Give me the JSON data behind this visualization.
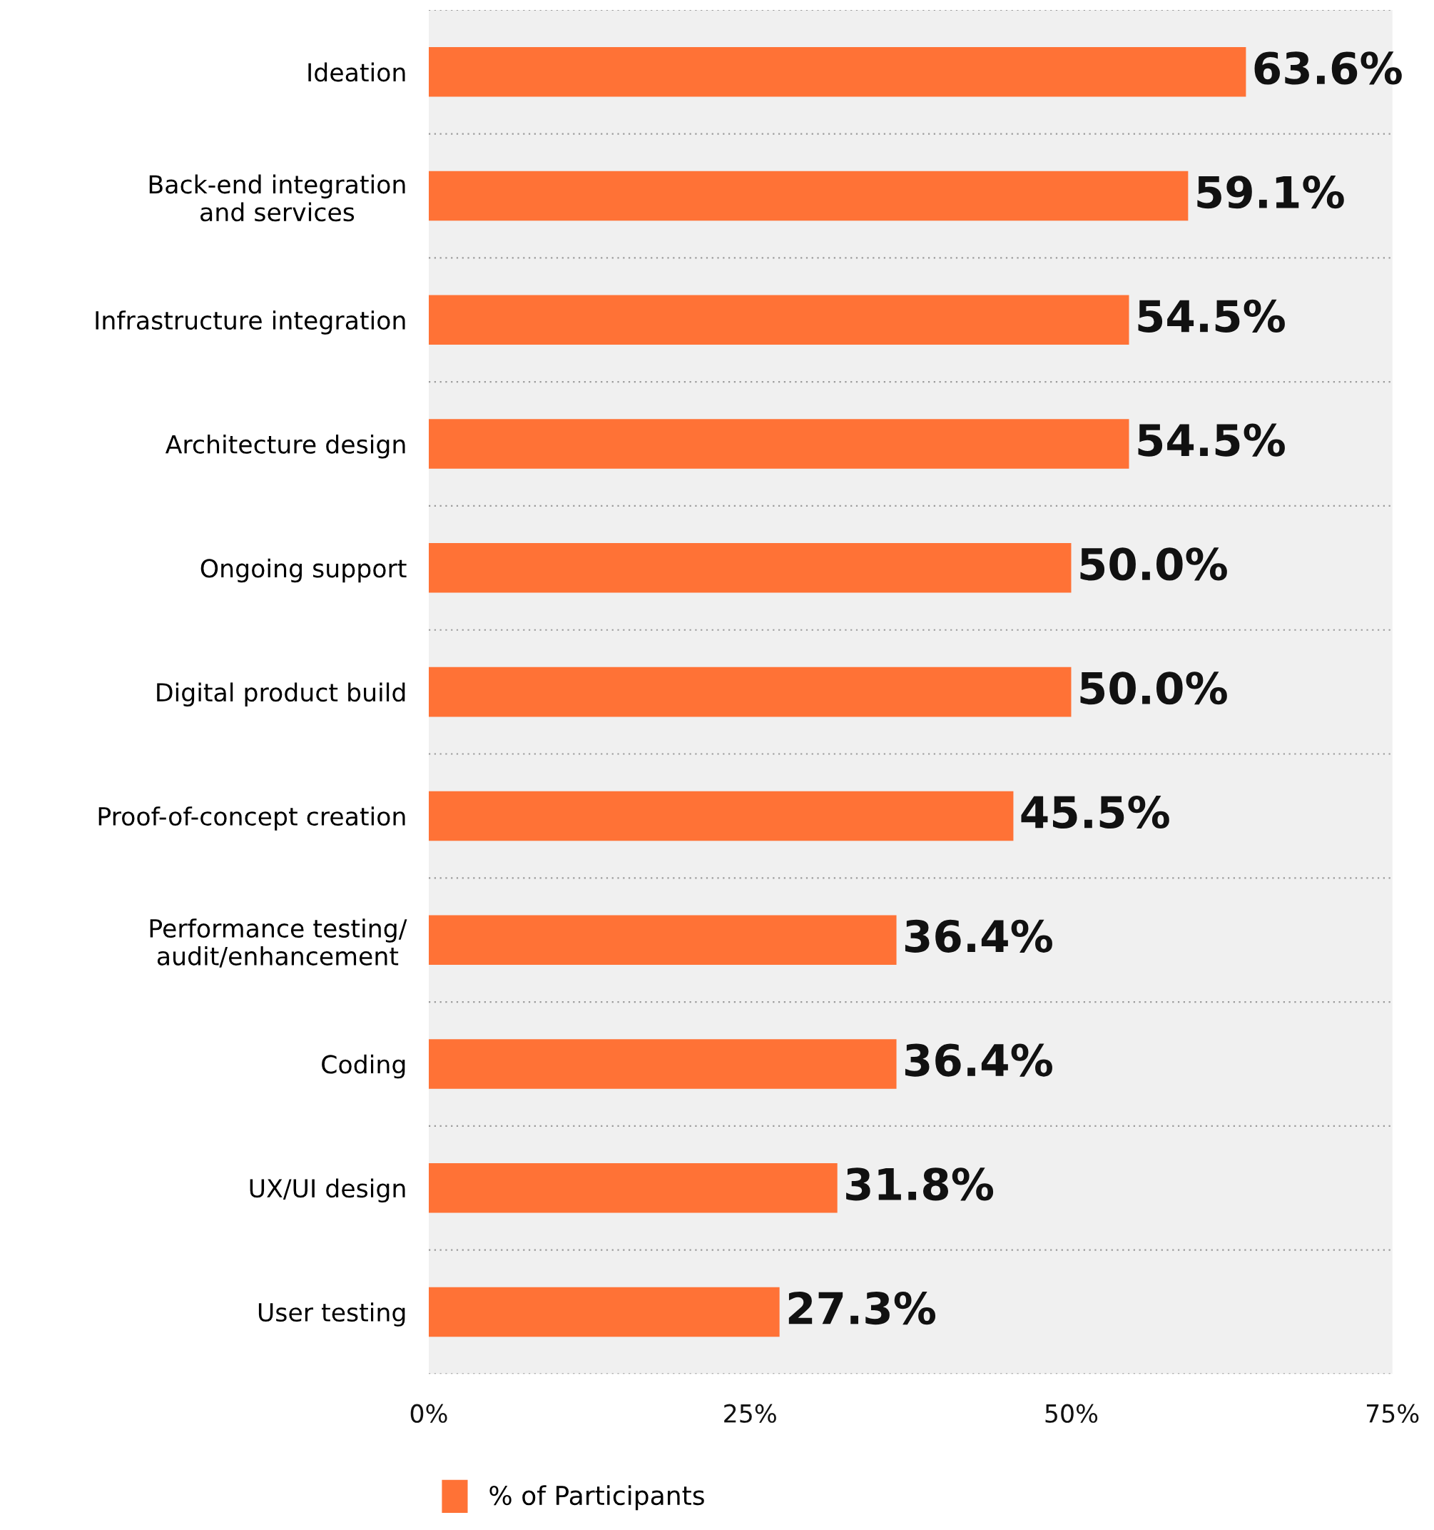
{
  "chart_data": {
    "type": "bar",
    "orientation": "horizontal",
    "categories": [
      "Ideation",
      "Back-end integration\nand services",
      "Infrastructure integration",
      "Architecture design",
      "Ongoing support",
      "Digital product build",
      "Proof-of-concept creation",
      "Performance testing/\naudit/enhancement",
      "Coding",
      "UX/UI design",
      "User testing"
    ],
    "series": [
      {
        "name": "% of Participants",
        "color": "#ff7236",
        "values": [
          63.6,
          59.1,
          54.5,
          54.5,
          50.0,
          50.0,
          45.5,
          36.4,
          36.4,
          31.8,
          27.3
        ],
        "value_labels": [
          "63.6%",
          "59.1%",
          "54.5%",
          "54.5%",
          "50.0%",
          "50.0%",
          "45.5%",
          "36.4%",
          "36.4%",
          "31.8%",
          "27.3%"
        ]
      }
    ],
    "xlim": [
      0,
      75
    ],
    "xticks": [
      {
        "value": 0,
        "label": "0%"
      },
      {
        "value": 25,
        "label": "25%"
      },
      {
        "value": 50,
        "label": "50%"
      },
      {
        "value": 75,
        "label": "75%"
      }
    ],
    "grid": "y",
    "legend": "bottom"
  }
}
